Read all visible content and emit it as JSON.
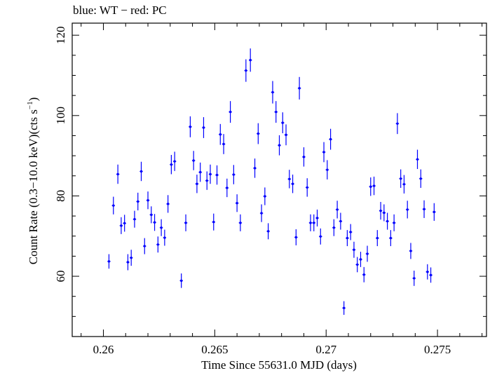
{
  "chart_data": {
    "type": "scatter",
    "title": "blue: WT − red: PC",
    "xlabel": "Time Since 55631.0 MJD (days)",
    "ylabel_main": "Count Rate (0.3−10.0 keV)(cts s",
    "ylabel_sup": "−1",
    "ylabel_tail": ")",
    "xlim": [
      0.2586,
      0.2772
    ],
    "ylim": [
      45,
      123
    ],
    "xticks": [
      0.26,
      0.265,
      0.27,
      0.275
    ],
    "xtick_labels": [
      "0.26",
      "0.265",
      "0.27",
      "0.275"
    ],
    "yticks": [
      60,
      80,
      100,
      120
    ],
    "ytick_labels": [
      "60",
      "80",
      "100",
      "120"
    ],
    "grid": false,
    "series": [
      {
        "color": "#0000ff",
        "points": [
          [
            0.26025,
            63.7,
            1.8
          ],
          [
            0.26045,
            77.6,
            2.2
          ],
          [
            0.26065,
            85.4,
            2.4
          ],
          [
            0.2608,
            72.6,
            2.1
          ],
          [
            0.26095,
            73.2,
            2.1
          ],
          [
            0.2611,
            63.5,
            2.0
          ],
          [
            0.26125,
            64.6,
            2.0
          ],
          [
            0.2614,
            74.2,
            2.1
          ],
          [
            0.26155,
            78.6,
            2.2
          ],
          [
            0.2617,
            86.1,
            2.4
          ],
          [
            0.26185,
            67.5,
            2.0
          ],
          [
            0.262,
            78.9,
            2.2
          ],
          [
            0.26215,
            75.3,
            2.1
          ],
          [
            0.2623,
            73.4,
            2.1
          ],
          [
            0.26245,
            67.9,
            2.0
          ],
          [
            0.2626,
            72.1,
            2.1
          ],
          [
            0.26275,
            69.6,
            2.0
          ],
          [
            0.2629,
            78.0,
            2.2
          ],
          [
            0.26305,
            87.8,
            2.4
          ],
          [
            0.2632,
            88.6,
            2.4
          ],
          [
            0.2635,
            58.9,
            1.8
          ],
          [
            0.2637,
            73.3,
            2.1
          ],
          [
            0.2639,
            97.2,
            2.6
          ],
          [
            0.26405,
            88.8,
            2.4
          ],
          [
            0.2642,
            83.0,
            2.3
          ],
          [
            0.26435,
            85.9,
            2.4
          ],
          [
            0.2645,
            97.0,
            2.6
          ],
          [
            0.26465,
            83.8,
            2.3
          ],
          [
            0.2648,
            85.4,
            2.4
          ],
          [
            0.26495,
            73.5,
            2.1
          ],
          [
            0.2651,
            85.2,
            2.4
          ],
          [
            0.26525,
            95.3,
            2.6
          ],
          [
            0.2654,
            92.9,
            2.5
          ],
          [
            0.26555,
            82.0,
            2.3
          ],
          [
            0.2657,
            100.9,
            2.7
          ],
          [
            0.26585,
            85.3,
            2.4
          ],
          [
            0.266,
            78.2,
            2.2
          ],
          [
            0.26615,
            73.3,
            2.1
          ],
          [
            0.2664,
            111.2,
            2.8
          ],
          [
            0.2666,
            113.8,
            2.9
          ],
          [
            0.2668,
            86.9,
            2.4
          ],
          [
            0.26695,
            95.5,
            2.6
          ],
          [
            0.2671,
            75.7,
            2.2
          ],
          [
            0.26725,
            79.9,
            2.2
          ],
          [
            0.2674,
            71.2,
            2.0
          ],
          [
            0.2676,
            105.8,
            2.8
          ],
          [
            0.26775,
            100.9,
            2.7
          ],
          [
            0.2679,
            92.6,
            2.5
          ],
          [
            0.26805,
            98.2,
            2.6
          ],
          [
            0.2682,
            95.2,
            2.6
          ],
          [
            0.26835,
            84.2,
            2.3
          ],
          [
            0.2685,
            83.0,
            2.3
          ],
          [
            0.26865,
            69.7,
            2.0
          ],
          [
            0.2688,
            106.8,
            2.8
          ],
          [
            0.269,
            89.7,
            2.4
          ],
          [
            0.26915,
            82.1,
            2.3
          ],
          [
            0.2693,
            73.3,
            2.1
          ],
          [
            0.26945,
            73.3,
            2.1
          ],
          [
            0.2696,
            74.5,
            2.1
          ],
          [
            0.26975,
            69.9,
            2.0
          ],
          [
            0.2699,
            90.9,
            2.5
          ],
          [
            0.27005,
            86.5,
            2.4
          ],
          [
            0.2702,
            94.1,
            2.6
          ],
          [
            0.27035,
            72.1,
            2.1
          ],
          [
            0.2705,
            76.6,
            2.2
          ],
          [
            0.27065,
            73.7,
            2.1
          ],
          [
            0.2708,
            52.1,
            1.7
          ],
          [
            0.27095,
            69.5,
            2.0
          ],
          [
            0.2711,
            71.0,
            2.0
          ],
          [
            0.27125,
            66.6,
            2.0
          ],
          [
            0.2714,
            62.9,
            1.9
          ],
          [
            0.27155,
            64.2,
            1.9
          ],
          [
            0.2717,
            60.4,
            1.9
          ],
          [
            0.27185,
            65.6,
            2.0
          ],
          [
            0.272,
            82.3,
            2.3
          ],
          [
            0.27215,
            82.5,
            2.3
          ],
          [
            0.2723,
            69.5,
            2.0
          ],
          [
            0.27245,
            76.3,
            2.2
          ],
          [
            0.2726,
            75.8,
            2.1
          ],
          [
            0.27275,
            73.7,
            2.1
          ],
          [
            0.2729,
            69.5,
            2.0
          ],
          [
            0.27305,
            73.3,
            2.1
          ],
          [
            0.2732,
            98.0,
            2.6
          ],
          [
            0.27335,
            84.3,
            2.3
          ],
          [
            0.2735,
            82.9,
            2.3
          ],
          [
            0.27365,
            76.6,
            2.2
          ],
          [
            0.2738,
            66.3,
            2.0
          ],
          [
            0.27395,
            59.5,
            1.9
          ],
          [
            0.2741,
            89.1,
            2.4
          ],
          [
            0.27425,
            84.3,
            2.3
          ],
          [
            0.2744,
            76.7,
            2.2
          ],
          [
            0.27455,
            61.1,
            1.9
          ],
          [
            0.2747,
            60.3,
            1.9
          ],
          [
            0.27485,
            76.0,
            2.2
          ]
        ]
      }
    ]
  }
}
